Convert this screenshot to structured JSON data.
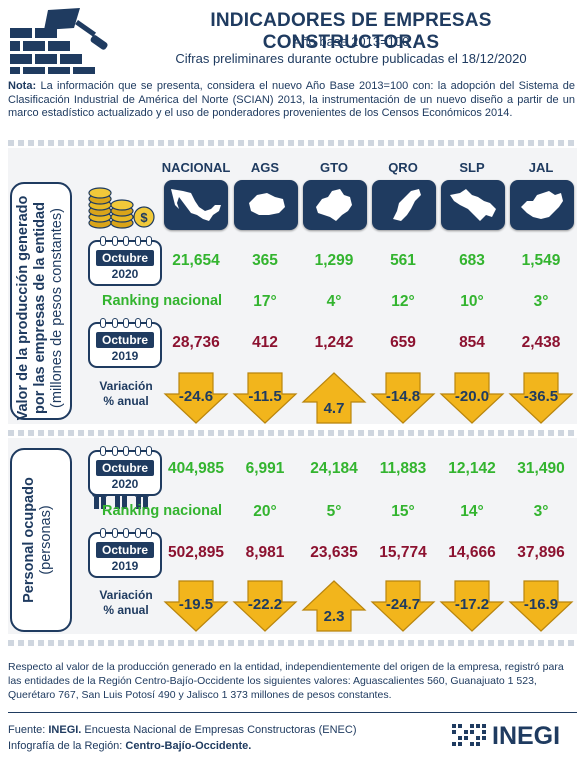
{
  "header": {
    "title": "INDICADORES DE EMPRESAS CONSTRUCTORAS",
    "base_year": "Año base 2013=100",
    "subtitle": "Cifras preliminares durante octubre publicadas el 18/12/2020"
  },
  "note": {
    "label": "Nota:",
    "text": " La información que se presenta, considera el nuevo Año Base 2013=100 con: la adopción del Sistema de Clasificación Industrial de América del Norte (SCIAN) 2013, la instrumentación de un nuevo diseño a partir de un marco estadístico actualizado y el uso de ponderadores provenientes de los Censos Económicos 2014."
  },
  "columns": [
    "NACIONAL",
    "AGS",
    "GTO",
    "QRO",
    "SLP",
    "JAL"
  ],
  "production": {
    "side_label_line1": "Valor de la producción generado",
    "side_label_line2": "por las empresas  de la entidad",
    "side_label_line3": "(millones de pesos constantes)",
    "cal_2020": {
      "month": "Octubre",
      "year": "2020"
    },
    "cal_2019": {
      "month": "Octubre",
      "year": "2019"
    },
    "values_2020": [
      "21,654",
      "365",
      "1,299",
      "561",
      "683",
      "1,549"
    ],
    "ranking_label": "Ranking nacional",
    "ranking": [
      "17°",
      "4°",
      "12°",
      "10°",
      "3°"
    ],
    "values_2019": [
      "28,736",
      "412",
      "1,242",
      "659",
      "854",
      "2,438"
    ],
    "variation_label_1": "Variación",
    "variation_label_2": "% anual",
    "variation": [
      "-24.6",
      "-11.5",
      "4.7",
      "-14.8",
      "-20.0",
      "-36.5"
    ]
  },
  "employment": {
    "side_label_line1": "Personal ocupado",
    "side_label_line2": "(personas)",
    "cal_2020": {
      "month": "Octubre",
      "year": "2020"
    },
    "cal_2019": {
      "month": "Octubre",
      "year": "2019"
    },
    "values_2020": [
      "404,985",
      "6,991",
      "24,184",
      "11,883",
      "12,142",
      "31,490"
    ],
    "ranking_label": "Ranking nacional",
    "ranking": [
      "20°",
      "5°",
      "15°",
      "14°",
      "3°"
    ],
    "values_2019": [
      "502,895",
      "8,981",
      "23,635",
      "15,774",
      "14,666",
      "37,896"
    ],
    "variation_label_1": "Variación",
    "variation_label_2": "% anual",
    "variation": [
      "-19.5",
      "-22.2",
      "2.3",
      "-24.7",
      "-17.2",
      "-16.9"
    ]
  },
  "footer": {
    "note": "Respecto al valor de la producción generado en la entidad, independientemente del origen de la empresa, registró para las entidades de la Región Centro-Bajío-Occidente los siguientes valores: Aguascalientes 560, Guanajuato 1 523, Querétaro 767, San Luis Potosí 490 y Jalisco 1 373 millones de pesos constantes.",
    "source_label": "Fuente: ",
    "source_org": "INEGI.",
    "source_text": " Encuesta Nacional de Empresas Constructoras (ENEC)",
    "info_label": "Infografía de la Región: ",
    "info_region": "Centro-Bajío-Occidente.",
    "logo_text": "INEGI"
  },
  "colors": {
    "navy": "#1f3b60",
    "green": "#33b42f",
    "maroon": "#8c1230",
    "arrow": "#f2b51c"
  }
}
